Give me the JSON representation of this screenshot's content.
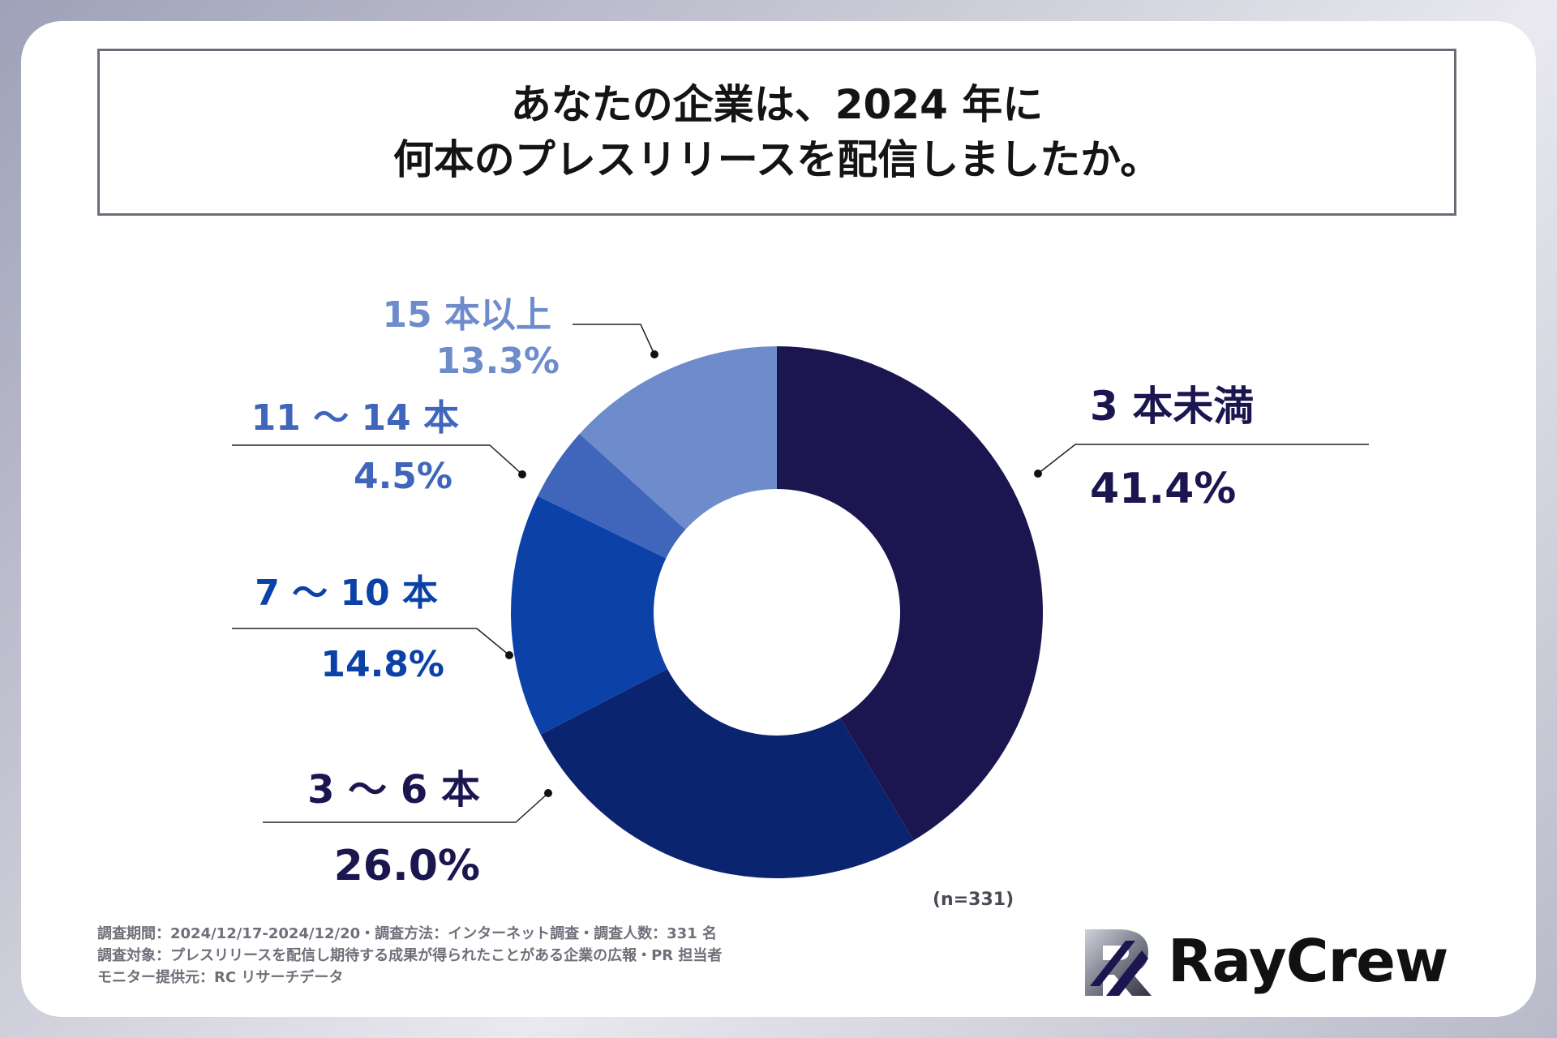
{
  "title": {
    "line1": "あなたの企業は、2024 年に",
    "line2": "何本のプレスリリースを配信しましたか。"
  },
  "chart_data": {
    "type": "pie",
    "variant": "donut",
    "n_label": "(n=331)",
    "slices": [
      {
        "label": "3 本未満",
        "percent_label": "41.4%",
        "value": 41.4,
        "color": "#1c1650"
      },
      {
        "label": "3 ～ 6 本",
        "percent_label": "26.0%",
        "value": 26.0,
        "color": "#0b2470"
      },
      {
        "label": "7 ～ 10 本",
        "percent_label": "14.8%",
        "value": 14.8,
        "color": "#0c42a8"
      },
      {
        "label": "11 ～ 14 本",
        "percent_label": "4.5%",
        "value": 4.5,
        "color": "#3f66bb"
      },
      {
        "label": "15 本以上",
        "percent_label": "13.3%",
        "value": 13.3,
        "color": "#6e8ccb"
      }
    ]
  },
  "footer": {
    "line1": "調査期間：2024/12/17-2024/12/20・調査方法：インターネット調査・調査人数：331 名",
    "line2": "調査対象：プレスリリースを配信し期待する成果が得られたことがある企業の広報・PR 担当者",
    "line3": "モニター提供元：RC リサーチデータ"
  },
  "logo": {
    "name": "RayCrew"
  }
}
